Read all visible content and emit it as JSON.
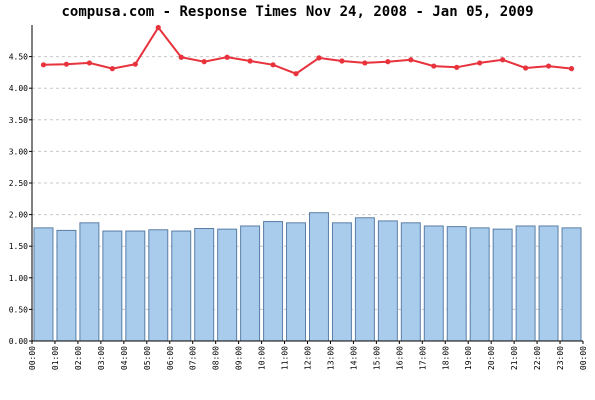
{
  "chart_data": {
    "type": "bar",
    "title": "compusa.com - Response Times Nov 24, 2008 - Jan 05, 2009",
    "xlabel": "",
    "ylabel": "",
    "ylim": [
      0,
      5.0
    ],
    "yticks": [
      0.0,
      0.5,
      1.0,
      1.5,
      2.0,
      2.5,
      3.0,
      3.5,
      4.0,
      4.5
    ],
    "ytick_labels": [
      "0.00",
      "0.50",
      "1.00",
      "1.50",
      "2.00",
      "2.50",
      "3.00",
      "3.50",
      "4.00",
      "4.50"
    ],
    "x_tick_labels": [
      "00:00",
      "01:00",
      "02:00",
      "03:00",
      "04:00",
      "05:00",
      "06:00",
      "07:00",
      "08:00",
      "09:00",
      "10:00",
      "11:00",
      "12:00",
      "13:00",
      "14:00",
      "15:00",
      "16:00",
      "17:00",
      "18:00",
      "19:00",
      "20:00",
      "21:00",
      "22:00",
      "23:00",
      "00:00"
    ],
    "grid": true,
    "legend": "none",
    "series": [
      {
        "type": "bar",
        "color": "#a9cbec",
        "values": [
          1.79,
          1.75,
          1.87,
          1.74,
          1.74,
          1.76,
          1.74,
          1.78,
          1.77,
          1.82,
          1.89,
          1.87,
          2.03,
          1.87,
          1.95,
          1.9,
          1.87,
          1.82,
          1.81,
          1.79,
          1.77,
          1.82,
          1.82,
          1.79
        ]
      },
      {
        "type": "line",
        "color": "#e8323c",
        "values": [
          4.37,
          4.38,
          4.4,
          4.31,
          4.38,
          4.96,
          4.49,
          4.42,
          4.49,
          4.43,
          4.37,
          4.23,
          4.48,
          4.43,
          4.4,
          4.42,
          4.45,
          4.35,
          4.33,
          4.4,
          4.45,
          4.32,
          4.35,
          4.31
        ]
      }
    ]
  }
}
